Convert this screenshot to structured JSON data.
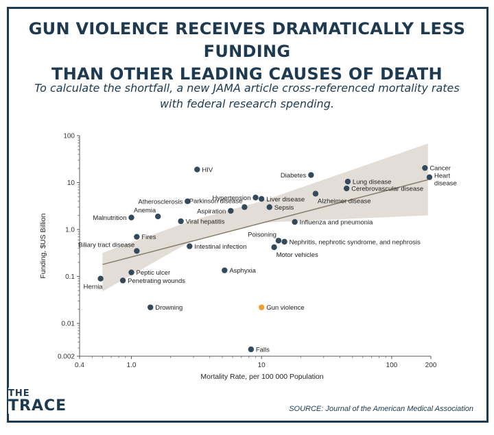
{
  "title_line1": "GUN VIOLENCE RECEIVES DRAMATICALLY LESS FUNDING",
  "title_line2": "THAN OTHER LEADING CAUSES OF DEATH",
  "subtitle_line1": "To calculate the shortfall, a new JAMA article cross-referenced mortality rates",
  "subtitle_line2": "with federal research spending.",
  "logo_line1": "THE",
  "logo_line2": "TRACE",
  "source": "SOURCE: Journal of the American Medical Association",
  "colors": {
    "frame": "#1c3b52",
    "point": "#34495a",
    "highlight": "#f0a030",
    "band": "#ddd8d0",
    "trend": "#8a7d6b"
  },
  "chart_data": {
    "type": "scatter",
    "xscale": "log",
    "yscale": "log",
    "xlabel": "Mortality Rate, per 100 000 Population",
    "ylabel": "Funding, $US Billion",
    "xlim": [
      0.4,
      200
    ],
    "ylim": [
      0.002,
      100
    ],
    "xticks": [
      {
        "v": 0.4,
        "label": "0.4"
      },
      {
        "v": 1,
        "label": "1.0"
      },
      {
        "v": 10,
        "label": "10"
      },
      {
        "v": 100,
        "label": "100"
      },
      {
        "v": 200,
        "label": "200"
      }
    ],
    "yticks": [
      {
        "v": 100,
        "label": "100"
      },
      {
        "v": 10,
        "label": "10"
      },
      {
        "v": 1,
        "label": "1.0"
      },
      {
        "v": 0.1,
        "label": "0.1"
      },
      {
        "v": 0.01,
        "label": "0.01"
      },
      {
        "v": 0.002,
        "label": "0.002"
      }
    ],
    "trend_line": {
      "x": [
        0.6,
        190
      ],
      "y": [
        0.18,
        11.5
      ]
    },
    "confidence_band": {
      "upper": [
        [
          0.6,
          0.32
        ],
        [
          3,
          1.6
        ],
        [
          10,
          4.0
        ],
        [
          190,
          68
        ]
      ],
      "lower": [
        [
          0.6,
          0.048
        ],
        [
          3,
          0.6
        ],
        [
          10,
          1.4
        ],
        [
          190,
          2.0
        ]
      ]
    },
    "points": [
      {
        "name": "HIV",
        "x": 3.2,
        "y": 19,
        "label_pos": "right"
      },
      {
        "name": "Diabetes",
        "x": 24,
        "y": 14.5,
        "label_pos": "left"
      },
      {
        "name": "Cancer",
        "x": 180,
        "y": 20.5,
        "label_pos": "right"
      },
      {
        "name": "Heart disease",
        "x": 195,
        "y": 13,
        "label_pos": "right-two-line"
      },
      {
        "name": "Lung disease",
        "x": 46,
        "y": 10.5,
        "label_pos": "right"
      },
      {
        "name": "Cerebrovascular disease",
        "x": 45,
        "y": 7.5,
        "label_pos": "right"
      },
      {
        "name": "Alzheimer disease",
        "x": 26,
        "y": 5.8,
        "label_pos": "below-right"
      },
      {
        "name": "Hypertension",
        "x": 9,
        "y": 4.8,
        "label_pos": "left"
      },
      {
        "name": "Liver disease",
        "x": 10,
        "y": 4.5,
        "label_pos": "right"
      },
      {
        "name": "Atherosclerosis",
        "x": 2.7,
        "y": 4.0,
        "label_pos": "left"
      },
      {
        "name": "Parkinson disease",
        "x": 7.4,
        "y": 3.0,
        "label_pos": "above-left"
      },
      {
        "name": "Sepsis",
        "x": 11.5,
        "y": 3.0,
        "label_pos": "right"
      },
      {
        "name": "Aspiration",
        "x": 5.8,
        "y": 2.5,
        "label_pos": "left"
      },
      {
        "name": "Anemia",
        "x": 1.6,
        "y": 1.9,
        "label_pos": "above-left"
      },
      {
        "name": "Malnutrition",
        "x": 1.0,
        "y": 1.8,
        "label_pos": "left"
      },
      {
        "name": "Viral hepatitis",
        "x": 2.4,
        "y": 1.5,
        "label_pos": "right"
      },
      {
        "name": "Influenza and pneumonia",
        "x": 18,
        "y": 1.45,
        "label_pos": "right"
      },
      {
        "name": "Fires",
        "x": 1.1,
        "y": 0.7,
        "label_pos": "right"
      },
      {
        "name": "Poisoning",
        "x": 13.5,
        "y": 0.58,
        "label_pos": "above-left"
      },
      {
        "name": "Nephritis, nephrotic syndrome, and nephrosis",
        "x": 15,
        "y": 0.55,
        "label_pos": "right"
      },
      {
        "name": "Intestinal infection",
        "x": 2.8,
        "y": 0.44,
        "label_pos": "right"
      },
      {
        "name": "Motor vehicles",
        "x": 12.5,
        "y": 0.42,
        "label_pos": "below-right"
      },
      {
        "name": "Biliary tract disease",
        "x": 1.1,
        "y": 0.35,
        "label_pos": "above-left"
      },
      {
        "name": "Asphyxia",
        "x": 5.2,
        "y": 0.135,
        "label_pos": "right"
      },
      {
        "name": "Peptic ulcer",
        "x": 1.0,
        "y": 0.122,
        "label_pos": "right"
      },
      {
        "name": "Hernia",
        "x": 0.58,
        "y": 0.09,
        "label_pos": "below-left"
      },
      {
        "name": "Penetrating wounds",
        "x": 0.86,
        "y": 0.082,
        "label_pos": "right"
      },
      {
        "name": "Drowning",
        "x": 1.4,
        "y": 0.022,
        "label_pos": "right"
      },
      {
        "name": "Gun violence",
        "x": 10,
        "y": 0.022,
        "label_pos": "right",
        "highlight": true
      },
      {
        "name": "Falls",
        "x": 8.3,
        "y": 0.0028,
        "label_pos": "right"
      }
    ]
  }
}
